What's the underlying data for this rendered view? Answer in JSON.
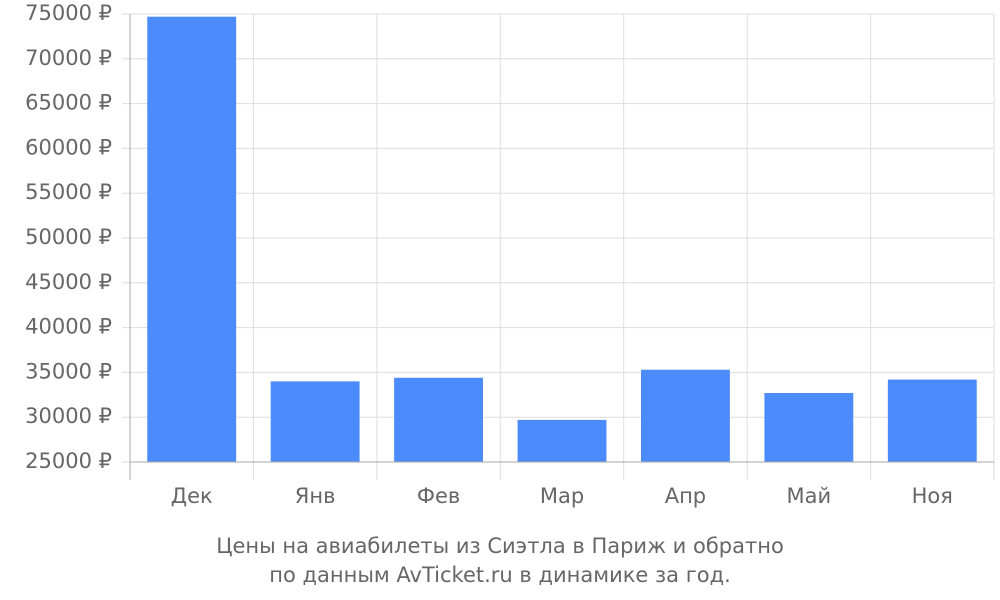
{
  "chart_data": {
    "type": "bar",
    "title": "Цены на авиабилеты из Сиэтла в Париж и обратно",
    "subtitle": "по данным AvTicket.ru в динамике за год.",
    "categories": [
      "Дек",
      "Янв",
      "Фев",
      "Мар",
      "Апр",
      "Май",
      "Ноя"
    ],
    "values": [
      74700,
      34000,
      34400,
      29700,
      35300,
      32700,
      34200
    ],
    "color": "#4c8bfb",
    "ylim": [
      25000,
      75000
    ],
    "yticks": [
      {
        "value": 25000,
        "label": "25000 ₽"
      },
      {
        "value": 30000,
        "label": "30000 ₽"
      },
      {
        "value": 35000,
        "label": "35000 ₽"
      },
      {
        "value": 40000,
        "label": "40000 ₽"
      },
      {
        "value": 45000,
        "label": "45000 ₽"
      },
      {
        "value": 50000,
        "label": "50000 ₽"
      },
      {
        "value": 55000,
        "label": "55000 ₽"
      },
      {
        "value": 60000,
        "label": "60000 ₽"
      },
      {
        "value": 65000,
        "label": "65000 ₽"
      },
      {
        "value": 70000,
        "label": "70000 ₽"
      },
      {
        "value": 75000,
        "label": "75000 ₽"
      }
    ],
    "grid": true
  }
}
